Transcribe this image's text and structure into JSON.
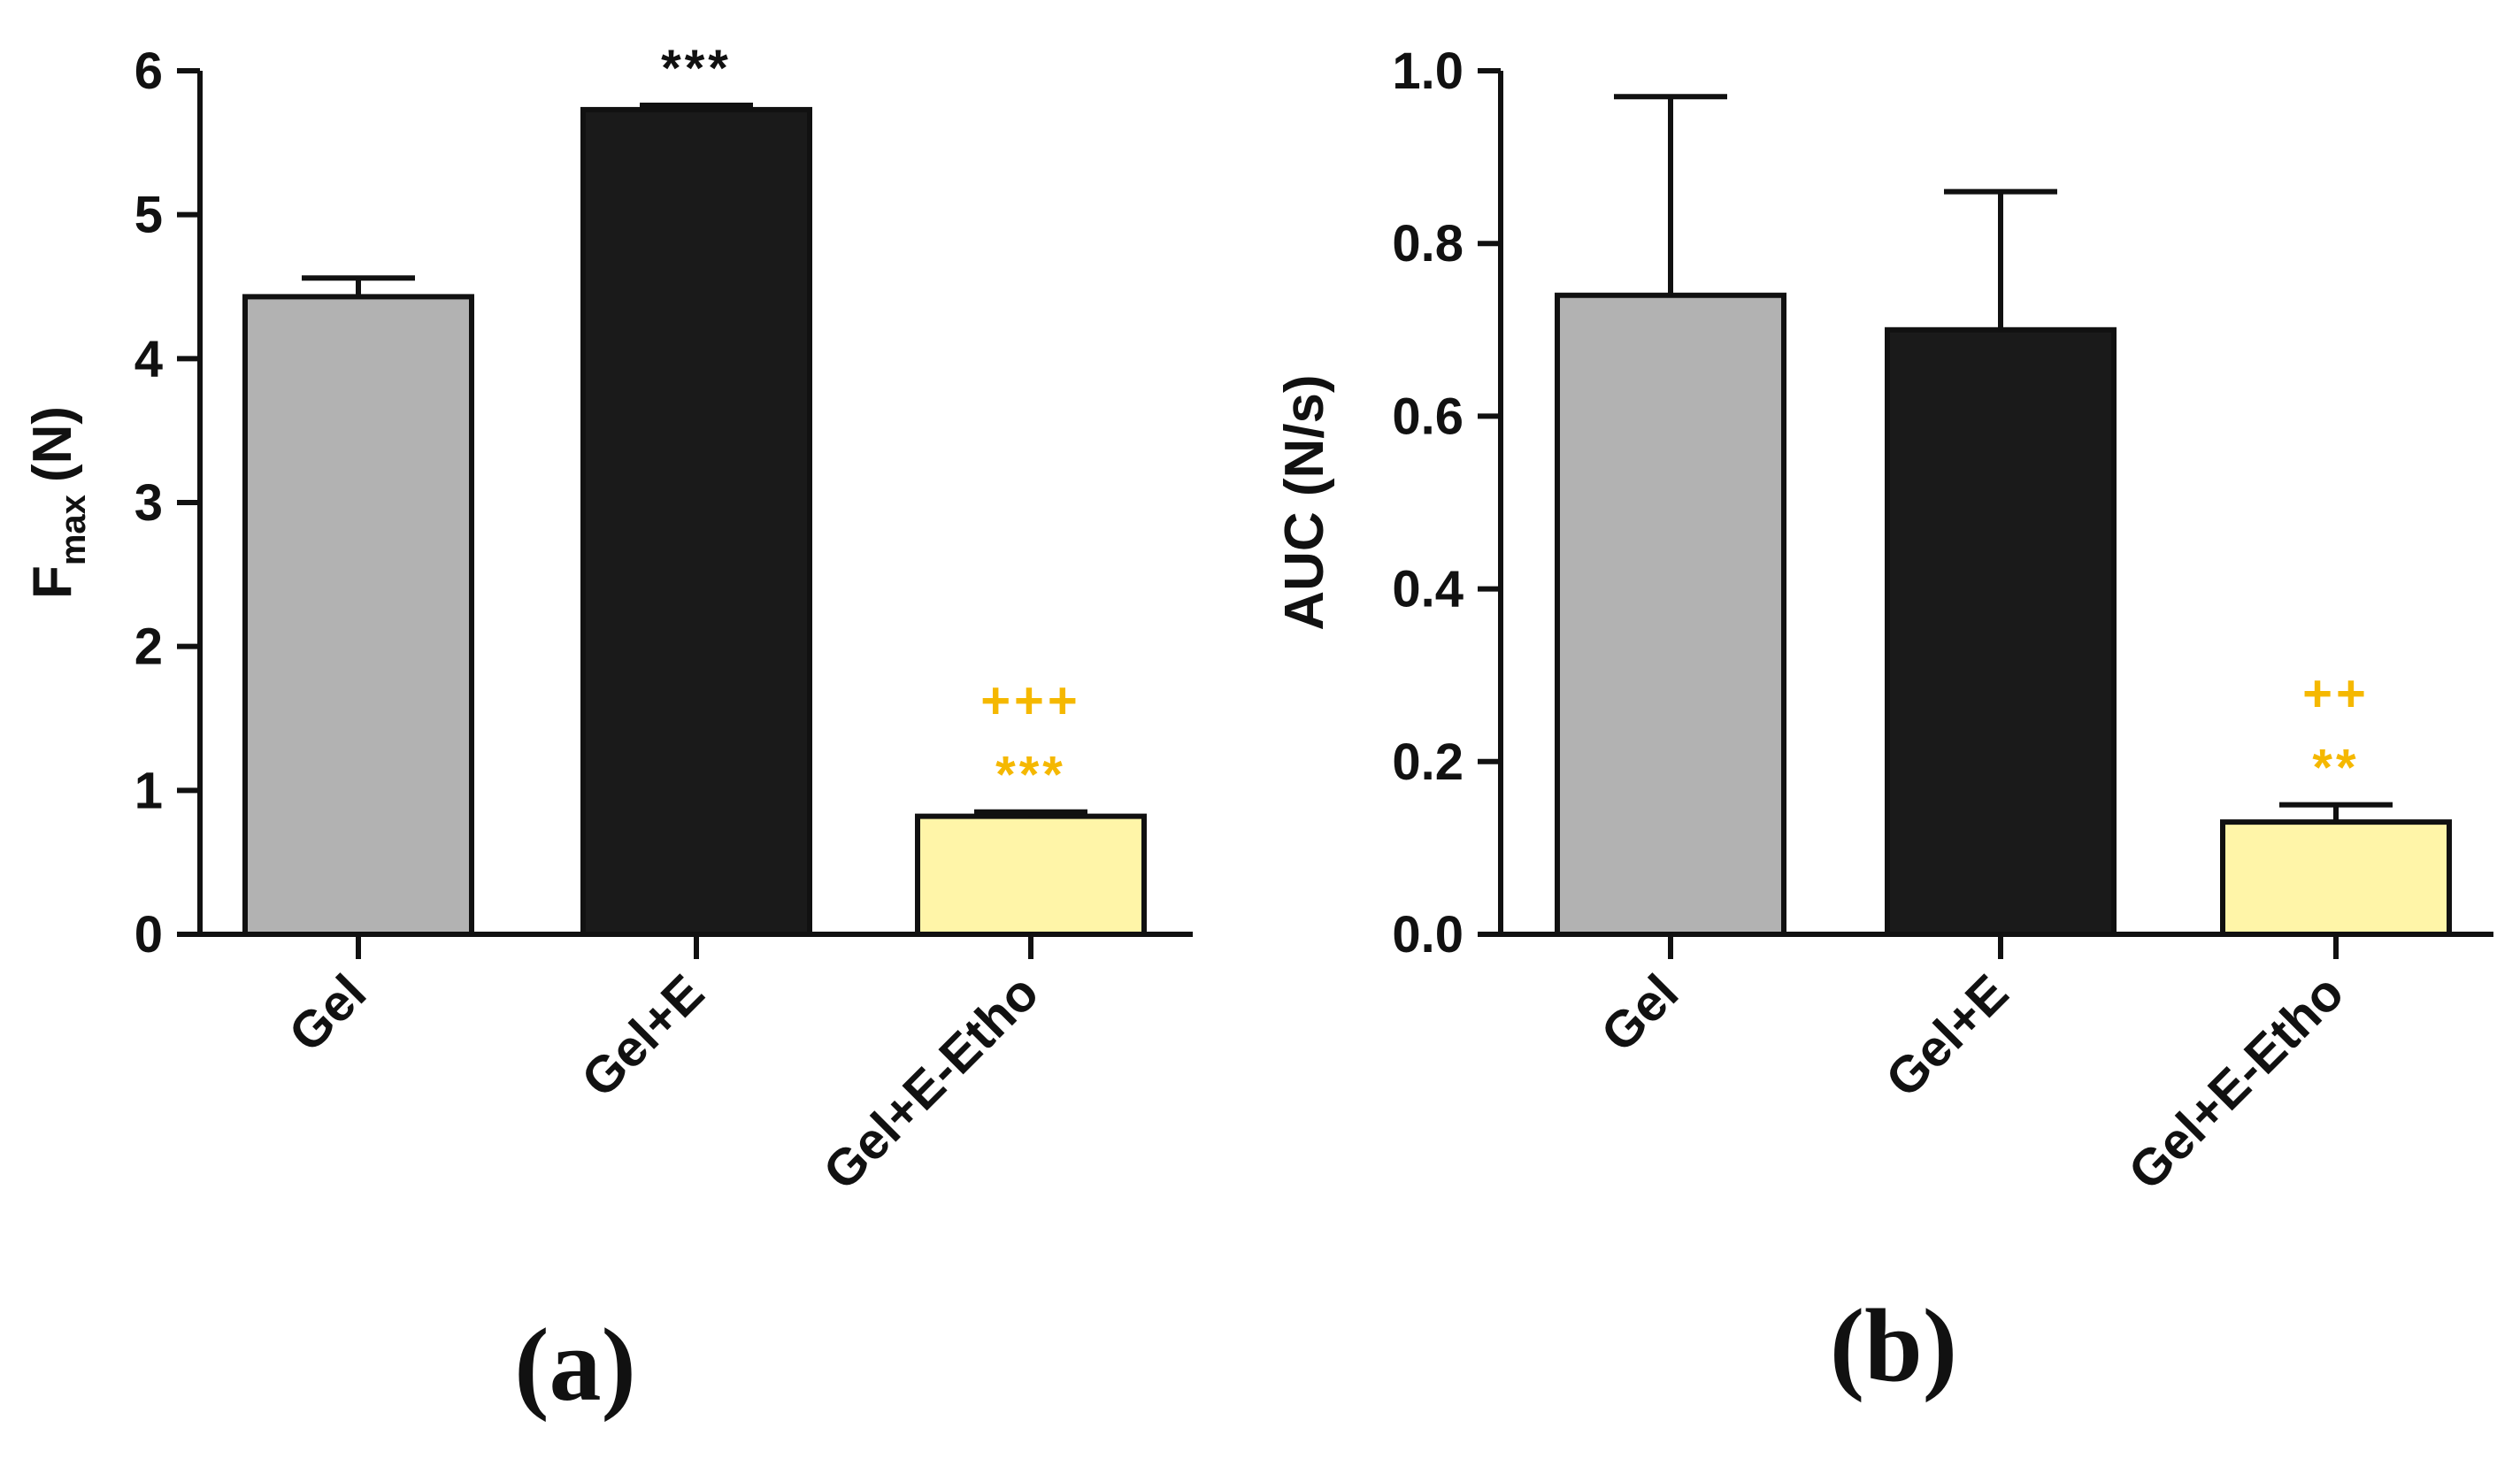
{
  "colors": {
    "gel": "#b2b2b2",
    "gel_e": "#1a1a1a",
    "gel_e_etho": "#fff5a8",
    "axis": "#111111",
    "sig_vs_gel": "#111111",
    "sig_vs_gel_e": "#f5b800"
  },
  "chart_data": [
    {
      "id": "a",
      "type": "bar",
      "panel_label": "(a)",
      "ylabel_main": "F",
      "ylabel_sub": "max",
      "ylabel_unit": "(N)",
      "ylim": [
        0,
        6
      ],
      "yticks": [
        "0",
        "1",
        "2",
        "3",
        "4",
        "5",
        "6"
      ],
      "categories": [
        "Gel",
        "Gel+E",
        "Gel+E-Etho"
      ],
      "values": [
        4.43,
        5.73,
        0.82
      ],
      "errors": [
        0.13,
        0.03,
        0.03
      ],
      "fills": [
        "#b2b2b2",
        "#1a1a1a",
        "#fff5a8"
      ],
      "annotations": [
        {
          "bar": 1,
          "lines": [
            {
              "text": "***",
              "color": "#111111"
            }
          ]
        },
        {
          "bar": 2,
          "lines": [
            {
              "text": "+++",
              "color": "#f5b800"
            },
            {
              "text": "***",
              "color": "#f5b800"
            }
          ]
        }
      ]
    },
    {
      "id": "b",
      "type": "bar",
      "panel_label": "(b)",
      "ylabel": "AUC (N/s)",
      "ylim": [
        0,
        1.0
      ],
      "yticks": [
        "0.0",
        "0.2",
        "0.4",
        "0.6",
        "0.8",
        "1.0"
      ],
      "categories": [
        "Gel",
        "Gel+E",
        "Gel+E-Etho"
      ],
      "values": [
        0.74,
        0.7,
        0.13
      ],
      "errors": [
        0.23,
        0.16,
        0.02
      ],
      "fills": [
        "#b2b2b2",
        "#1a1a1a",
        "#fff5a8"
      ],
      "annotations": [
        {
          "bar": 2,
          "lines": [
            {
              "text": "++",
              "color": "#f5b800"
            },
            {
              "text": "**",
              "color": "#f5b800"
            }
          ]
        }
      ]
    }
  ]
}
